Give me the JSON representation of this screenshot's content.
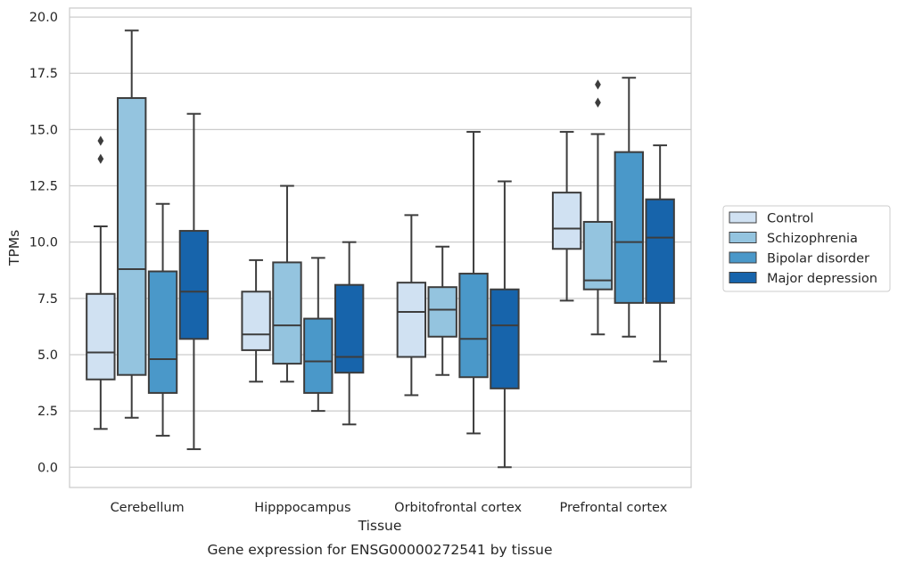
{
  "chart_data": {
    "type": "box",
    "title": "",
    "caption": "Gene expression for ENSG00000272541 by tissue",
    "xlabel": "Tissue",
    "ylabel": "TPMs",
    "ylim": [
      -0.9,
      20.4
    ],
    "yticks": [
      0.0,
      2.5,
      5.0,
      7.5,
      10.0,
      12.5,
      15.0,
      17.5,
      20.0
    ],
    "ytick_labels": [
      "0.0",
      "2.5",
      "5.0",
      "7.5",
      "10.0",
      "12.5",
      "15.0",
      "17.5",
      "20.0"
    ],
    "grid": true,
    "legend_position": "right",
    "categories": [
      "Cerebellum",
      "Hipppocampus",
      "Orbitofrontal cortex",
      "Prefrontal cortex"
    ],
    "series": [
      {
        "name": "Control",
        "color": "#d0e1f2",
        "boxes": [
          {
            "whisker_low": 1.7,
            "q1": 3.9,
            "median": 5.1,
            "q3": 7.7,
            "whisker_high": 10.7,
            "outliers": [
              14.5,
              13.7
            ]
          },
          {
            "whisker_low": 3.8,
            "q1": 5.2,
            "median": 5.9,
            "q3": 7.8,
            "whisker_high": 9.2,
            "outliers": []
          },
          {
            "whisker_low": 3.2,
            "q1": 4.9,
            "median": 6.9,
            "q3": 8.2,
            "whisker_high": 11.2,
            "outliers": []
          },
          {
            "whisker_low": 7.4,
            "q1": 9.7,
            "median": 10.6,
            "q3": 12.2,
            "whisker_high": 14.9,
            "outliers": []
          }
        ]
      },
      {
        "name": "Schizophrenia",
        "color": "#94c4df",
        "boxes": [
          {
            "whisker_low": 2.2,
            "q1": 4.1,
            "median": 8.8,
            "q3": 16.4,
            "whisker_high": 19.4,
            "outliers": []
          },
          {
            "whisker_low": 3.8,
            "q1": 4.6,
            "median": 6.3,
            "q3": 9.1,
            "whisker_high": 12.5,
            "outliers": []
          },
          {
            "whisker_low": 4.1,
            "q1": 5.8,
            "median": 7.0,
            "q3": 8.0,
            "whisker_high": 9.8,
            "outliers": []
          },
          {
            "whisker_low": 5.9,
            "q1": 7.9,
            "median": 8.3,
            "q3": 10.9,
            "whisker_high": 14.8,
            "outliers": [
              17.0,
              16.2
            ]
          }
        ]
      },
      {
        "name": "Bipolar disorder",
        "color": "#4a98c9",
        "boxes": [
          {
            "whisker_low": 1.4,
            "q1": 3.3,
            "median": 4.8,
            "q3": 8.7,
            "whisker_high": 11.7,
            "outliers": []
          },
          {
            "whisker_low": 2.5,
            "q1": 3.3,
            "median": 4.7,
            "q3": 6.6,
            "whisker_high": 9.3,
            "outliers": []
          },
          {
            "whisker_low": 1.5,
            "q1": 4.0,
            "median": 5.7,
            "q3": 8.6,
            "whisker_high": 14.9,
            "outliers": []
          },
          {
            "whisker_low": 5.8,
            "q1": 7.3,
            "median": 10.0,
            "q3": 14.0,
            "whisker_high": 17.3,
            "outliers": []
          }
        ]
      },
      {
        "name": "Major depression",
        "color": "#1764ab",
        "boxes": [
          {
            "whisker_low": 0.8,
            "q1": 5.7,
            "median": 7.8,
            "q3": 10.5,
            "whisker_high": 15.7,
            "outliers": []
          },
          {
            "whisker_low": 1.9,
            "q1": 4.2,
            "median": 4.9,
            "q3": 8.1,
            "whisker_high": 10.0,
            "outliers": []
          },
          {
            "whisker_low": 0.0,
            "q1": 3.5,
            "median": 6.3,
            "q3": 7.9,
            "whisker_high": 12.7,
            "outliers": []
          },
          {
            "whisker_low": 4.7,
            "q1": 7.3,
            "median": 10.2,
            "q3": 11.9,
            "whisker_high": 14.3,
            "outliers": []
          }
        ]
      }
    ]
  }
}
